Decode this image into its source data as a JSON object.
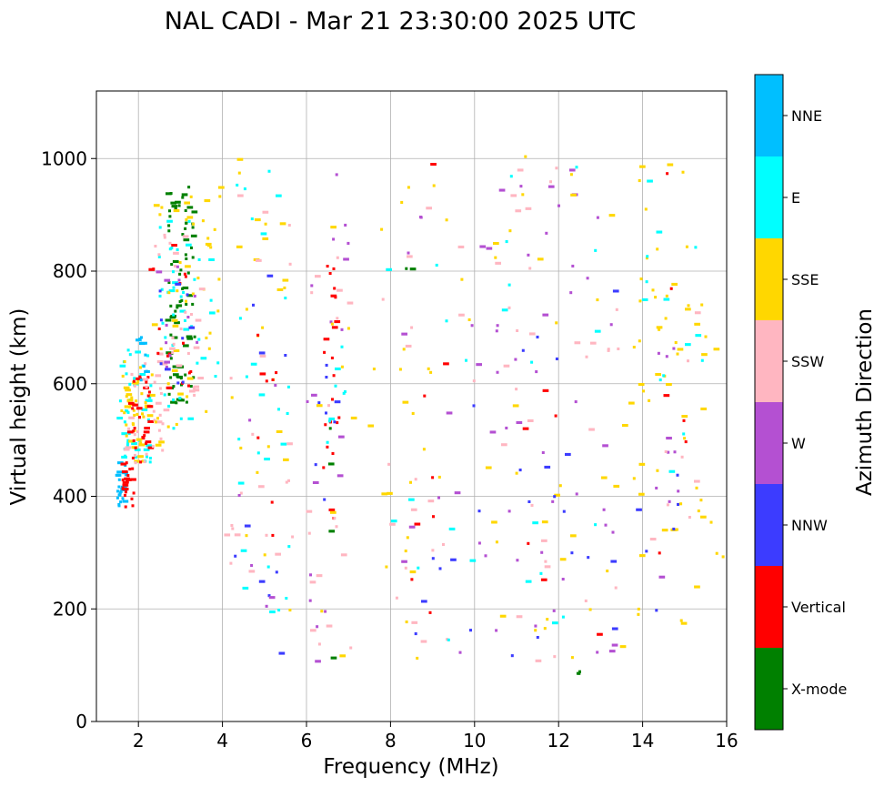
{
  "chart_data": {
    "type": "scatter",
    "title": "NAL CADI - Mar 21 23:30:00 2025 UTC",
    "xlabel": "Frequency (MHz)",
    "ylabel": "Virtual height (km)",
    "xlim": [
      1,
      16
    ],
    "ylim": [
      0,
      1120
    ],
    "xticks": [
      2,
      4,
      6,
      8,
      10,
      12,
      14,
      16
    ],
    "yticks": [
      0,
      200,
      400,
      600,
      800,
      1000
    ],
    "grid": true,
    "colorbar": {
      "title": "Azimuth Direction",
      "categories": [
        {
          "name": "X-mode",
          "color": "#008000"
        },
        {
          "name": "Vertical",
          "color": "#ff0000"
        },
        {
          "name": "NNW",
          "color": "#3c3cff"
        },
        {
          "name": "W",
          "color": "#b450d2"
        },
        {
          "name": "SSW",
          "color": "#ffb6c1"
        },
        {
          "name": "SSE",
          "color": "#ffd700"
        },
        {
          "name": "E",
          "color": "#00ffff"
        },
        {
          "name": "NNE",
          "color": "#00bfff"
        }
      ]
    },
    "marker_size_mhz": 0.12,
    "marker_size_km": 5,
    "clusters": [
      {
        "category": "NNE",
        "f": [
          1.5,
          1.75
        ],
        "h": [
          380,
          460
        ],
        "n": 26,
        "seed": 11
      },
      {
        "category": "Vertical",
        "f": [
          1.6,
          1.9
        ],
        "h": [
          380,
          470
        ],
        "n": 22,
        "seed": 12
      },
      {
        "category": "E",
        "f": [
          1.55,
          2.3
        ],
        "h": [
          460,
          660
        ],
        "n": 45,
        "seed": 13
      },
      {
        "category": "SSE",
        "f": [
          1.6,
          2.4
        ],
        "h": [
          460,
          640
        ],
        "n": 45,
        "seed": 14
      },
      {
        "category": "Vertical",
        "f": [
          1.8,
          2.3
        ],
        "h": [
          460,
          620
        ],
        "n": 30,
        "seed": 15
      },
      {
        "category": "SSW",
        "f": [
          1.7,
          2.6
        ],
        "h": [
          450,
          650
        ],
        "n": 28,
        "seed": 16
      },
      {
        "category": "NNE",
        "f": [
          2.0,
          2.3
        ],
        "h": [
          600,
          700
        ],
        "n": 10,
        "seed": 17
      },
      {
        "category": "X-mode",
        "f": [
          2.7,
          3.35
        ],
        "h": [
          560,
          950
        ],
        "n": 80,
        "seed": 18
      },
      {
        "category": "E",
        "f": [
          2.5,
          3.9
        ],
        "h": [
          520,
          900
        ],
        "n": 42,
        "seed": 19
      },
      {
        "category": "SSE",
        "f": [
          2.3,
          4.0
        ],
        "h": [
          480,
          950
        ],
        "n": 48,
        "seed": 20
      },
      {
        "category": "SSW",
        "f": [
          2.3,
          3.8
        ],
        "h": [
          480,
          880
        ],
        "n": 32,
        "seed": 21
      },
      {
        "category": "Vertical",
        "f": [
          2.2,
          3.3
        ],
        "h": [
          580,
          850
        ],
        "n": 16,
        "seed": 22
      },
      {
        "category": "W",
        "f": [
          2.4,
          3.5
        ],
        "h": [
          620,
          850
        ],
        "n": 12,
        "seed": 23
      },
      {
        "category": "NNW",
        "f": [
          2.5,
          3.3
        ],
        "h": [
          480,
          800
        ],
        "n": 10,
        "seed": 24
      },
      {
        "category": "E",
        "f": [
          4.2,
          5.6
        ],
        "h": [
          160,
          1010
        ],
        "n": 26,
        "seed": 31
      },
      {
        "category": "SSE",
        "f": [
          4.2,
          5.7
        ],
        "h": [
          180,
          1010
        ],
        "n": 24,
        "seed": 32
      },
      {
        "category": "SSW",
        "f": [
          4.0,
          5.8
        ],
        "h": [
          180,
          1010
        ],
        "n": 22,
        "seed": 33
      },
      {
        "category": "NNW",
        "f": [
          4.3,
          5.5
        ],
        "h": [
          90,
          800
        ],
        "n": 10,
        "seed": 34
      },
      {
        "category": "Vertical",
        "f": [
          4.7,
          5.3
        ],
        "h": [
          300,
          750
        ],
        "n": 8,
        "seed": 35
      },
      {
        "category": "W",
        "f": [
          4.4,
          5.4
        ],
        "h": [
          100,
          900
        ],
        "n": 6,
        "seed": 36
      },
      {
        "category": "Vertical",
        "f": [
          6.4,
          6.8
        ],
        "h": [
          360,
          810
        ],
        "n": 22,
        "seed": 41
      },
      {
        "category": "W",
        "f": [
          6.0,
          7.0
        ],
        "h": [
          90,
          980
        ],
        "n": 18,
        "seed": 42
      },
      {
        "category": "SSW",
        "f": [
          6.0,
          7.2
        ],
        "h": [
          100,
          990
        ],
        "n": 18,
        "seed": 43
      },
      {
        "category": "NNW",
        "f": [
          6.2,
          7.1
        ],
        "h": [
          300,
          650
        ],
        "n": 8,
        "seed": 44
      },
      {
        "category": "E",
        "f": [
          6.4,
          7.0
        ],
        "h": [
          440,
          700
        ],
        "n": 8,
        "seed": 45
      },
      {
        "category": "X-mode",
        "f": [
          6.5,
          6.9
        ],
        "h": [
          90,
          640
        ],
        "n": 4,
        "seed": 46
      },
      {
        "category": "SSE",
        "f": [
          5.8,
          7.8
        ],
        "h": [
          90,
          960
        ],
        "n": 10,
        "seed": 47
      },
      {
        "category": "SSE",
        "f": [
          7.5,
          10.5
        ],
        "h": [
          90,
          1010
        ],
        "n": 26,
        "seed": 51
      },
      {
        "category": "W",
        "f": [
          8.0,
          10.8
        ],
        "h": [
          90,
          900
        ],
        "n": 20,
        "seed": 52
      },
      {
        "category": "SSW",
        "f": [
          7.8,
          10.8
        ],
        "h": [
          100,
          980
        ],
        "n": 20,
        "seed": 53
      },
      {
        "category": "Vertical",
        "f": [
          8.2,
          9.4
        ],
        "h": [
          90,
          1010
        ],
        "n": 8,
        "seed": 54
      },
      {
        "category": "NNW",
        "f": [
          8.5,
          10.5
        ],
        "h": [
          140,
          700
        ],
        "n": 8,
        "seed": 55
      },
      {
        "category": "E",
        "f": [
          7.8,
          10.5
        ],
        "h": [
          140,
          850
        ],
        "n": 10,
        "seed": 56
      },
      {
        "category": "X-mode",
        "f": [
          8.3,
          8.6
        ],
        "h": [
          800,
          810
        ],
        "n": 2,
        "seed": 57
      },
      {
        "category": "W",
        "f": [
          10.5,
          13.5
        ],
        "h": [
          90,
          1000
        ],
        "n": 36,
        "seed": 61
      },
      {
        "category": "SSW",
        "f": [
          10.5,
          13.5
        ],
        "h": [
          90,
          1000
        ],
        "n": 32,
        "seed": 62
      },
      {
        "category": "SSE",
        "f": [
          10.3,
          13.8
        ],
        "h": [
          90,
          1010
        ],
        "n": 34,
        "seed": 63
      },
      {
        "category": "NNW",
        "f": [
          10.8,
          13.5
        ],
        "h": [
          90,
          800
        ],
        "n": 16,
        "seed": 64
      },
      {
        "category": "E",
        "f": [
          10.5,
          13.5
        ],
        "h": [
          90,
          1000
        ],
        "n": 14,
        "seed": 65
      },
      {
        "category": "Vertical",
        "f": [
          11.0,
          13.5
        ],
        "h": [
          90,
          700
        ],
        "n": 6,
        "seed": 66
      },
      {
        "category": "X-mode",
        "f": [
          12.4,
          12.8
        ],
        "h": [
          85,
          95
        ],
        "n": 3,
        "seed": 67
      },
      {
        "category": "SSE",
        "f": [
          13.8,
          15.5
        ],
        "h": [
          170,
          1000
        ],
        "n": 52,
        "seed": 71
      },
      {
        "category": "E",
        "f": [
          14.0,
          15.5
        ],
        "h": [
          400,
          980
        ],
        "n": 14,
        "seed": 72
      },
      {
        "category": "W",
        "f": [
          14.2,
          14.9
        ],
        "h": [
          240,
          700
        ],
        "n": 10,
        "seed": 73
      },
      {
        "category": "Vertical",
        "f": [
          14.4,
          15.1
        ],
        "h": [
          270,
          980
        ],
        "n": 6,
        "seed": 74
      },
      {
        "category": "SSW",
        "f": [
          13.8,
          15.5
        ],
        "h": [
          280,
          820
        ],
        "n": 8,
        "seed": 75
      },
      {
        "category": "NNW",
        "f": [
          13.8,
          14.9
        ],
        "h": [
          170,
          940
        ],
        "n": 6,
        "seed": 76
      },
      {
        "category": "SSE",
        "f": [
          15.5,
          16.0
        ],
        "h": [
          170,
          870
        ],
        "n": 5,
        "seed": 77
      }
    ]
  }
}
